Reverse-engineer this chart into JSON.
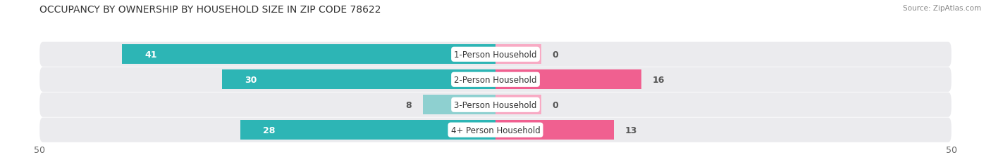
{
  "title": "OCCUPANCY BY OWNERSHIP BY HOUSEHOLD SIZE IN ZIP CODE 78622",
  "source": "Source: ZipAtlas.com",
  "categories": [
    "1-Person Household",
    "2-Person Household",
    "3-Person Household",
    "4+ Person Household"
  ],
  "owner_values": [
    41,
    30,
    8,
    28
  ],
  "renter_values": [
    0,
    16,
    0,
    13
  ],
  "owner_color_dark": "#2db5b5",
  "owner_color_light": "#8ed0d0",
  "renter_color_dark": "#f06090",
  "renter_color_light": "#f8aac4",
  "row_bg_color": "#ebebee",
  "axis_max": 50,
  "title_fontsize": 10,
  "label_fontsize": 9,
  "tick_fontsize": 9,
  "source_fontsize": 7.5
}
